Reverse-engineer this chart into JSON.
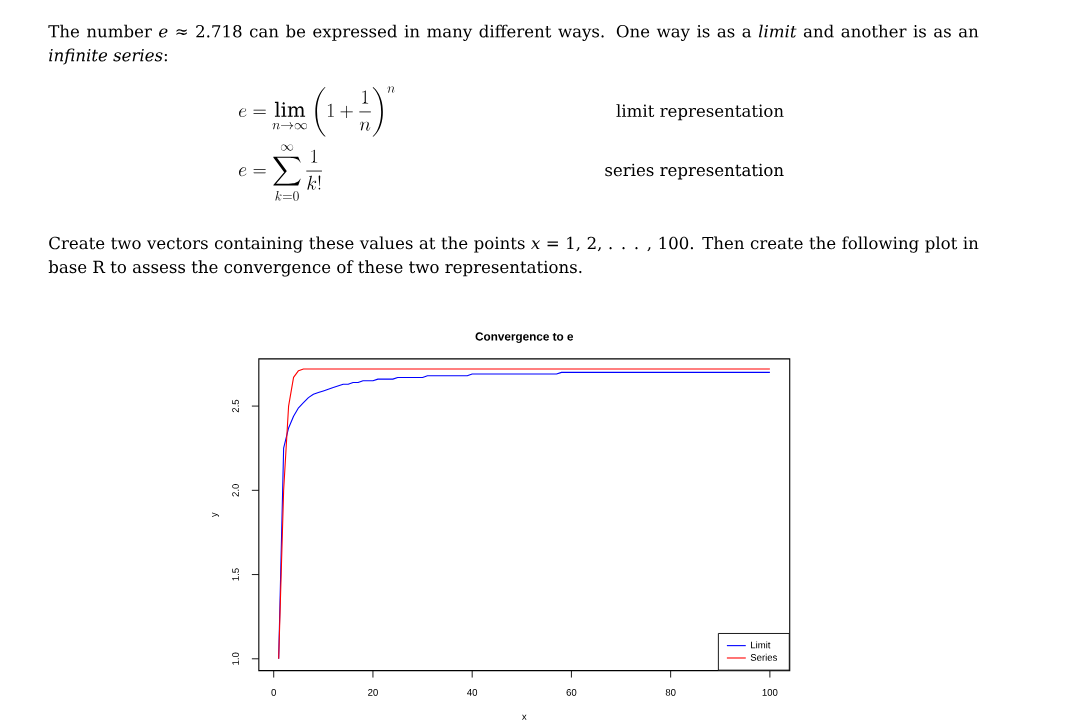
{
  "chart_data": {
    "type": "line",
    "title": "Convergence to e",
    "xlabel": "x",
    "ylabel": "y",
    "annotations": [
      "The number *e* ≈ 2.718 can be expressed in many different ways. One way is as a *limit* and another is as an *infinite series*:",
      "e = \\lim_{n \\to \\infty} \\left(1 + \\frac{1}{n}\\right)^n",
      "limit representation",
      "e = \\sum_{k=0}^{\\infty} \\frac{1}{k!}",
      "series representation",
      "Create two vectors containing these values at the points *x* = 1, 2, . . . , 100. Then create the following plot in base R to assess the convergence of these two representations."
    ],
    "x": [
      1,
      2,
      3,
      4,
      5,
      6,
      7,
      8,
      9,
      10,
      11,
      12,
      13,
      14,
      15,
      16,
      17,
      18,
      19,
      20,
      21,
      22,
      23,
      24,
      25,
      26,
      27,
      28,
      29,
      30,
      31,
      32,
      33,
      34,
      35,
      36,
      37,
      38,
      39,
      40,
      41,
      42,
      43,
      44,
      45,
      46,
      47,
      48,
      49,
      50,
      51,
      52,
      53,
      54,
      55,
      56,
      57,
      58,
      59,
      60,
      61,
      62,
      63,
      64,
      65,
      66,
      67,
      68,
      69,
      70,
      71,
      72,
      73,
      74,
      75,
      76,
      77,
      78,
      79,
      80,
      81,
      82,
      83,
      84,
      85,
      86,
      87,
      88,
      89,
      90,
      91,
      92,
      93,
      94,
      95,
      96,
      97,
      98,
      99,
      100
    ],
    "series": [
      {
        "name": "Limit",
        "color": "#0000ff",
        "values": [
          1,
          2.25,
          2.37,
          2.44,
          2.49,
          2.52,
          2.55,
          2.57,
          2.58,
          2.59,
          2.6,
          2.61,
          2.62,
          2.63,
          2.63,
          2.64,
          2.64,
          2.65,
          2.65,
          2.65,
          2.66,
          2.66,
          2.66,
          2.66,
          2.67,
          2.67,
          2.67,
          2.67,
          2.67,
          2.67,
          2.68,
          2.68,
          2.68,
          2.68,
          2.68,
          2.68,
          2.68,
          2.68,
          2.68,
          2.69,
          2.69,
          2.69,
          2.69,
          2.69,
          2.69,
          2.69,
          2.69,
          2.69,
          2.69,
          2.69,
          2.69,
          2.69,
          2.69,
          2.69,
          2.69,
          2.69,
          2.69,
          2.7,
          2.7,
          2.7,
          2.7,
          2.7,
          2.7,
          2.7,
          2.7,
          2.7,
          2.7,
          2.7,
          2.7,
          2.7,
          2.7,
          2.7,
          2.7,
          2.7,
          2.7,
          2.7,
          2.7,
          2.7,
          2.7,
          2.7,
          2.7,
          2.7,
          2.7,
          2.7,
          2.7,
          2.7,
          2.7,
          2.7,
          2.7,
          2.7,
          2.7,
          2.7,
          2.7,
          2.7,
          2.7,
          2.7,
          2.7,
          2.7,
          2.7,
          2.7
        ]
      },
      {
        "name": "Series",
        "color": "#ff0000",
        "values": [
          1,
          2,
          2.5,
          2.67,
          2.71,
          2.72,
          2.72,
          2.72,
          2.72,
          2.72,
          2.72,
          2.72,
          2.72,
          2.72,
          2.72,
          2.72,
          2.72,
          2.72,
          2.72,
          2.72,
          2.72,
          2.72,
          2.72,
          2.72,
          2.72,
          2.72,
          2.72,
          2.72,
          2.72,
          2.72,
          2.72,
          2.72,
          2.72,
          2.72,
          2.72,
          2.72,
          2.72,
          2.72,
          2.72,
          2.72,
          2.72,
          2.72,
          2.72,
          2.72,
          2.72,
          2.72,
          2.72,
          2.72,
          2.72,
          2.72,
          2.72,
          2.72,
          2.72,
          2.72,
          2.72,
          2.72,
          2.72,
          2.72,
          2.72,
          2.72,
          2.72,
          2.72,
          2.72,
          2.72,
          2.72,
          2.72,
          2.72,
          2.72,
          2.72,
          2.72,
          2.72,
          2.72,
          2.72,
          2.72,
          2.72,
          2.72,
          2.72,
          2.72,
          2.72,
          2.72,
          2.72,
          2.72,
          2.72,
          2.72,
          2.72,
          2.72,
          2.72,
          2.72,
          2.72,
          2.72,
          2.72,
          2.72,
          2.72,
          2.72,
          2.72,
          2.72,
          2.72,
          2.72,
          2.72,
          2.72
        ]
      }
    ],
    "xlim": [
      -3,
      104
    ],
    "ylim": [
      0.93,
      2.78
    ],
    "xticks": [
      0,
      20,
      40,
      60,
      80,
      100
    ],
    "yticks": [
      {
        "value": 1,
        "label": "1.0"
      },
      {
        "value": 1.5,
        "label": "1.5"
      },
      {
        "value": 2,
        "label": "2.0"
      },
      {
        "value": 2.5,
        "label": "2.5"
      }
    ],
    "legend": "bottom right",
    "marker": "none",
    "line_style": "solid"
  }
}
